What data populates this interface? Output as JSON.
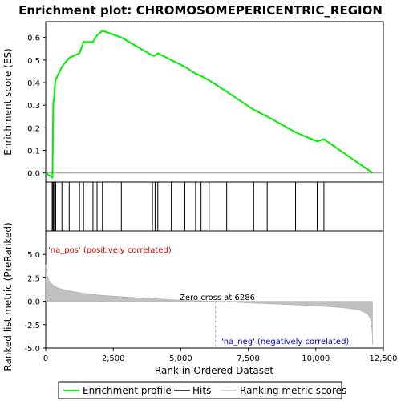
{
  "chart_data": {
    "type": "line",
    "title": "Enrichment plot: CHROMOSOMEPERICENTRIC_REGION",
    "es_panel": {
      "ylabel": "Enrichment score (ES)",
      "ylim": [
        -0.04,
        0.67
      ],
      "yticks": [
        0.0,
        0.1,
        0.2,
        0.3,
        0.4,
        0.5,
        0.6
      ],
      "ytick_labels": [
        "0.0",
        "0.1",
        "0.2",
        "0.3",
        "0.4",
        "0.5",
        "0.6"
      ],
      "series": [
        {
          "name": "Enrichment profile",
          "color": "#00ee00",
          "x": [
            0,
            250,
            260,
            270,
            280,
            290,
            300,
            360,
            600,
            870,
            1250,
            1400,
            1750,
            1900,
            2100,
            2800,
            3950,
            4050,
            4150,
            4650,
            5150,
            5550,
            5750,
            6050,
            6700,
            7700,
            8200,
            9250,
            10050,
            10300,
            12100
          ],
          "y": [
            0.0,
            -0.02,
            0.09,
            0.2,
            0.31,
            0.32,
            0.32,
            0.41,
            0.47,
            0.51,
            0.53,
            0.58,
            0.58,
            0.61,
            0.63,
            0.6,
            0.52,
            0.52,
            0.53,
            0.5,
            0.47,
            0.44,
            0.43,
            0.41,
            0.36,
            0.28,
            0.25,
            0.18,
            0.14,
            0.15,
            0.0
          ]
        }
      ]
    },
    "hits": [
      240,
      270,
      300,
      340,
      370,
      600,
      870,
      1250,
      1400,
      1750,
      1900,
      2100,
      2800,
      3950,
      4050,
      4150,
      4650,
      5150,
      5550,
      5750,
      6050,
      6700,
      7700,
      8200,
      9250,
      10050,
      10300
    ],
    "heatmap_colors": [
      "#e8102a",
      "#ee4a5a",
      "#f27a88",
      "#f7aab5",
      "#fbd0e8",
      "#f2d8f4",
      "#d7d3f3",
      "#b0aeee",
      "#7d7de6",
      "#4a4ad8",
      "#2c10c8"
    ],
    "rank_panel": {
      "ylabel": "Ranked list metric (PreRanked)",
      "ylim": [
        -5.0,
        7.5
      ],
      "yticks": [
        -5.0,
        -2.5,
        0.0,
        2.5,
        5.0
      ],
      "ytick_labels": [
        "-5.0",
        "-2.5",
        "0.0",
        "2.5",
        "5.0"
      ],
      "metric": {
        "x": [
          0,
          30,
          80,
          150,
          250,
          400,
          600,
          900,
          1300,
          2000,
          3000,
          4000,
          5000,
          6286,
          7500,
          8500,
          9500,
          10500,
          11200,
          11600,
          11850,
          11950,
          12020,
          12060,
          12090,
          12100
        ],
        "y": [
          3.9,
          3.0,
          2.5,
          2.1,
          1.8,
          1.5,
          1.3,
          1.1,
          0.9,
          0.65,
          0.45,
          0.28,
          0.12,
          0.0,
          -0.18,
          -0.3,
          -0.42,
          -0.58,
          -0.75,
          -0.95,
          -1.25,
          -1.5,
          -1.9,
          -2.5,
          -3.5,
          -4.6
        ]
      },
      "zero_cross_label": "Zero cross at 6286",
      "zero_cross": 6286,
      "pos_label": "'na_pos' (positively correlated)",
      "neg_label": "'na_neg' (negatively correlated)"
    },
    "xlabel": "Rank in Ordered Dataset",
    "xlim": [
      0,
      12500
    ],
    "xticks": [
      0,
      2500,
      5000,
      7500,
      10000,
      12500
    ],
    "xtick_labels": [
      "0",
      "2,500",
      "5,000",
      "7,500",
      "10,000",
      "12,500"
    ],
    "legend": {
      "placement": "bottom",
      "items": [
        {
          "label": "Enrichment profile",
          "color": "#00ee00"
        },
        {
          "label": "Hits",
          "color": "#000000"
        },
        {
          "label": "Ranking metric scores",
          "color": "#c0c0c0"
        }
      ]
    }
  }
}
